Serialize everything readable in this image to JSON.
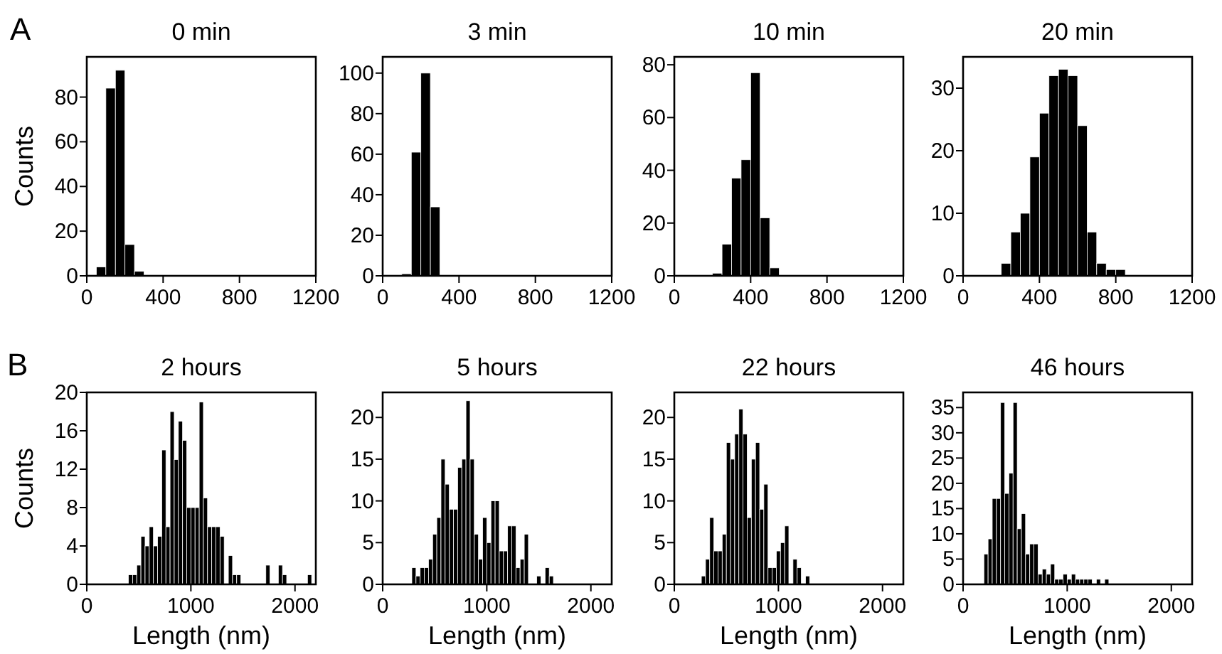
{
  "chart_data": [
    {
      "type": "histogram",
      "title": "0 min",
      "ylabel": "Counts",
      "annotations": [
        "A"
      ],
      "color": "#000000",
      "bins": [
        50,
        100,
        150,
        200,
        250,
        300
      ],
      "values": [
        4,
        84,
        92,
        14,
        2
      ],
      "xlim": [
        0,
        1200
      ],
      "xticks": [
        0,
        400,
        800,
        1200
      ],
      "ylim": [
        0,
        98
      ],
      "yticks": [
        0,
        20,
        40,
        60,
        80
      ]
    },
    {
      "type": "histogram",
      "title": "3 min",
      "color": "#000000",
      "bins": [
        100,
        150,
        200,
        250,
        300
      ],
      "values": [
        1,
        61,
        100,
        34
      ],
      "xlim": [
        0,
        1200
      ],
      "xticks": [
        0,
        400,
        800,
        1200
      ],
      "ylim": [
        0,
        108
      ],
      "yticks": [
        0,
        20,
        40,
        60,
        80,
        100
      ]
    },
    {
      "type": "histogram",
      "title": "10 min",
      "color": "#000000",
      "bins": [
        200,
        250,
        300,
        350,
        400,
        450,
        500,
        550
      ],
      "values": [
        1,
        12,
        37,
        44,
        77,
        22,
        3
      ],
      "xlim": [
        0,
        1200
      ],
      "xticks": [
        0,
        400,
        800,
        1200
      ],
      "ylim": [
        0,
        83
      ],
      "yticks": [
        0,
        20,
        40,
        60,
        80
      ]
    },
    {
      "type": "histogram",
      "title": "20 min",
      "color": "#000000",
      "bins": [
        200,
        250,
        300,
        350,
        400,
        450,
        500,
        550,
        600,
        650,
        700,
        750,
        800,
        850
      ],
      "values": [
        2,
        7,
        10,
        19,
        26,
        32,
        33,
        32,
        24,
        7,
        2,
        1,
        1
      ],
      "xlim": [
        0,
        1200
      ],
      "xticks": [
        0,
        400,
        800,
        1200
      ],
      "ylim": [
        0,
        35
      ],
      "yticks": [
        0,
        10,
        20,
        30
      ]
    },
    {
      "type": "histogram",
      "title": "2 hours",
      "ylabel": "Counts",
      "xlabel": "Length (nm)",
      "annotations": [
        "B"
      ],
      "color": "#000000",
      "bins": [
        400,
        440,
        480,
        520,
        560,
        600,
        640,
        680,
        720,
        760,
        800,
        840,
        880,
        920,
        960,
        1000,
        1040,
        1080,
        1120,
        1160,
        1200,
        1240,
        1280,
        1320,
        1360,
        1400,
        1440,
        1480,
        1520,
        1560,
        1600,
        1640,
        1680,
        1720,
        1760,
        1800,
        1840,
        1880,
        1920,
        1960,
        2000,
        2040,
        2080,
        2120,
        2160,
        2200
      ],
      "values": [
        1,
        1,
        2,
        5,
        4,
        6,
        4,
        5,
        14,
        6,
        18,
        13,
        17,
        15,
        8,
        8,
        8,
        19,
        9,
        6,
        6,
        6,
        5,
        0,
        3,
        1,
        1,
        0,
        0,
        0,
        0,
        0,
        0,
        2,
        0,
        0,
        2,
        1,
        0,
        0,
        0,
        0,
        0,
        1,
        0
      ],
      "xlim": [
        0,
        2200
      ],
      "xticks": [
        0,
        1000,
        2000
      ],
      "ylim": [
        0,
        20
      ],
      "yticks": [
        0,
        4,
        8,
        12,
        16,
        20
      ]
    },
    {
      "type": "histogram",
      "title": "5 hours",
      "xlabel": "Length (nm)",
      "color": "#000000",
      "bins": [
        280,
        320,
        360,
        400,
        440,
        480,
        520,
        560,
        600,
        640,
        680,
        720,
        760,
        800,
        840,
        880,
        920,
        960,
        1000,
        1040,
        1080,
        1120,
        1160,
        1200,
        1240,
        1280,
        1320,
        1360,
        1400,
        1440,
        1480,
        1520,
        1560,
        1600,
        1640
      ],
      "values": [
        2,
        1,
        2,
        2,
        3,
        6,
        8,
        15,
        12,
        9,
        9,
        14,
        15,
        22,
        15,
        6,
        3,
        8,
        5,
        10,
        10,
        4,
        4,
        7,
        7,
        2,
        3,
        6,
        0,
        0,
        1,
        0,
        2,
        1
      ],
      "xlim": [
        0,
        2200
      ],
      "xticks": [
        0,
        1000,
        2000
      ],
      "ylim": [
        0,
        23
      ],
      "yticks": [
        0,
        5,
        10,
        15,
        20
      ]
    },
    {
      "type": "histogram",
      "title": "22 hours",
      "xlabel": "Length (nm)",
      "color": "#000000",
      "bins": [
        260,
        300,
        340,
        380,
        420,
        460,
        500,
        540,
        580,
        620,
        660,
        700,
        740,
        780,
        820,
        860,
        900,
        940,
        980,
        1020,
        1060,
        1100,
        1140,
        1180,
        1220,
        1260,
        1300,
        1340
      ],
      "values": [
        1,
        3,
        8,
        4,
        4,
        6,
        17,
        15,
        18,
        21,
        18,
        8,
        15,
        17,
        9,
        12,
        2,
        2,
        4,
        5,
        7,
        0,
        3,
        2,
        0,
        1,
        0
      ],
      "xlim": [
        0,
        2200
      ],
      "xticks": [
        0,
        1000,
        2000
      ],
      "ylim": [
        0,
        23
      ],
      "yticks": [
        0,
        5,
        10,
        15,
        20
      ]
    },
    {
      "type": "histogram",
      "title": "46 hours",
      "xlabel": "Length (nm)",
      "color": "#000000",
      "bins": [
        200,
        240,
        280,
        320,
        360,
        400,
        440,
        480,
        520,
        560,
        600,
        640,
        680,
        720,
        760,
        800,
        840,
        880,
        920,
        960,
        1000,
        1040,
        1080,
        1120,
        1160,
        1200,
        1240,
        1280,
        1320,
        1360,
        1400
      ],
      "values": [
        6,
        9,
        17,
        17,
        36,
        18,
        22,
        36,
        11,
        14,
        6,
        8,
        8,
        2,
        3,
        2,
        4,
        1,
        1,
        2,
        1,
        2,
        1,
        1,
        1,
        1,
        0,
        1,
        0,
        1
      ],
      "xlim": [
        0,
        2200
      ],
      "xticks": [
        0,
        1000,
        2000
      ],
      "ylim": [
        0,
        38
      ],
      "yticks": [
        0,
        5,
        10,
        15,
        20,
        25,
        30,
        35
      ]
    }
  ]
}
